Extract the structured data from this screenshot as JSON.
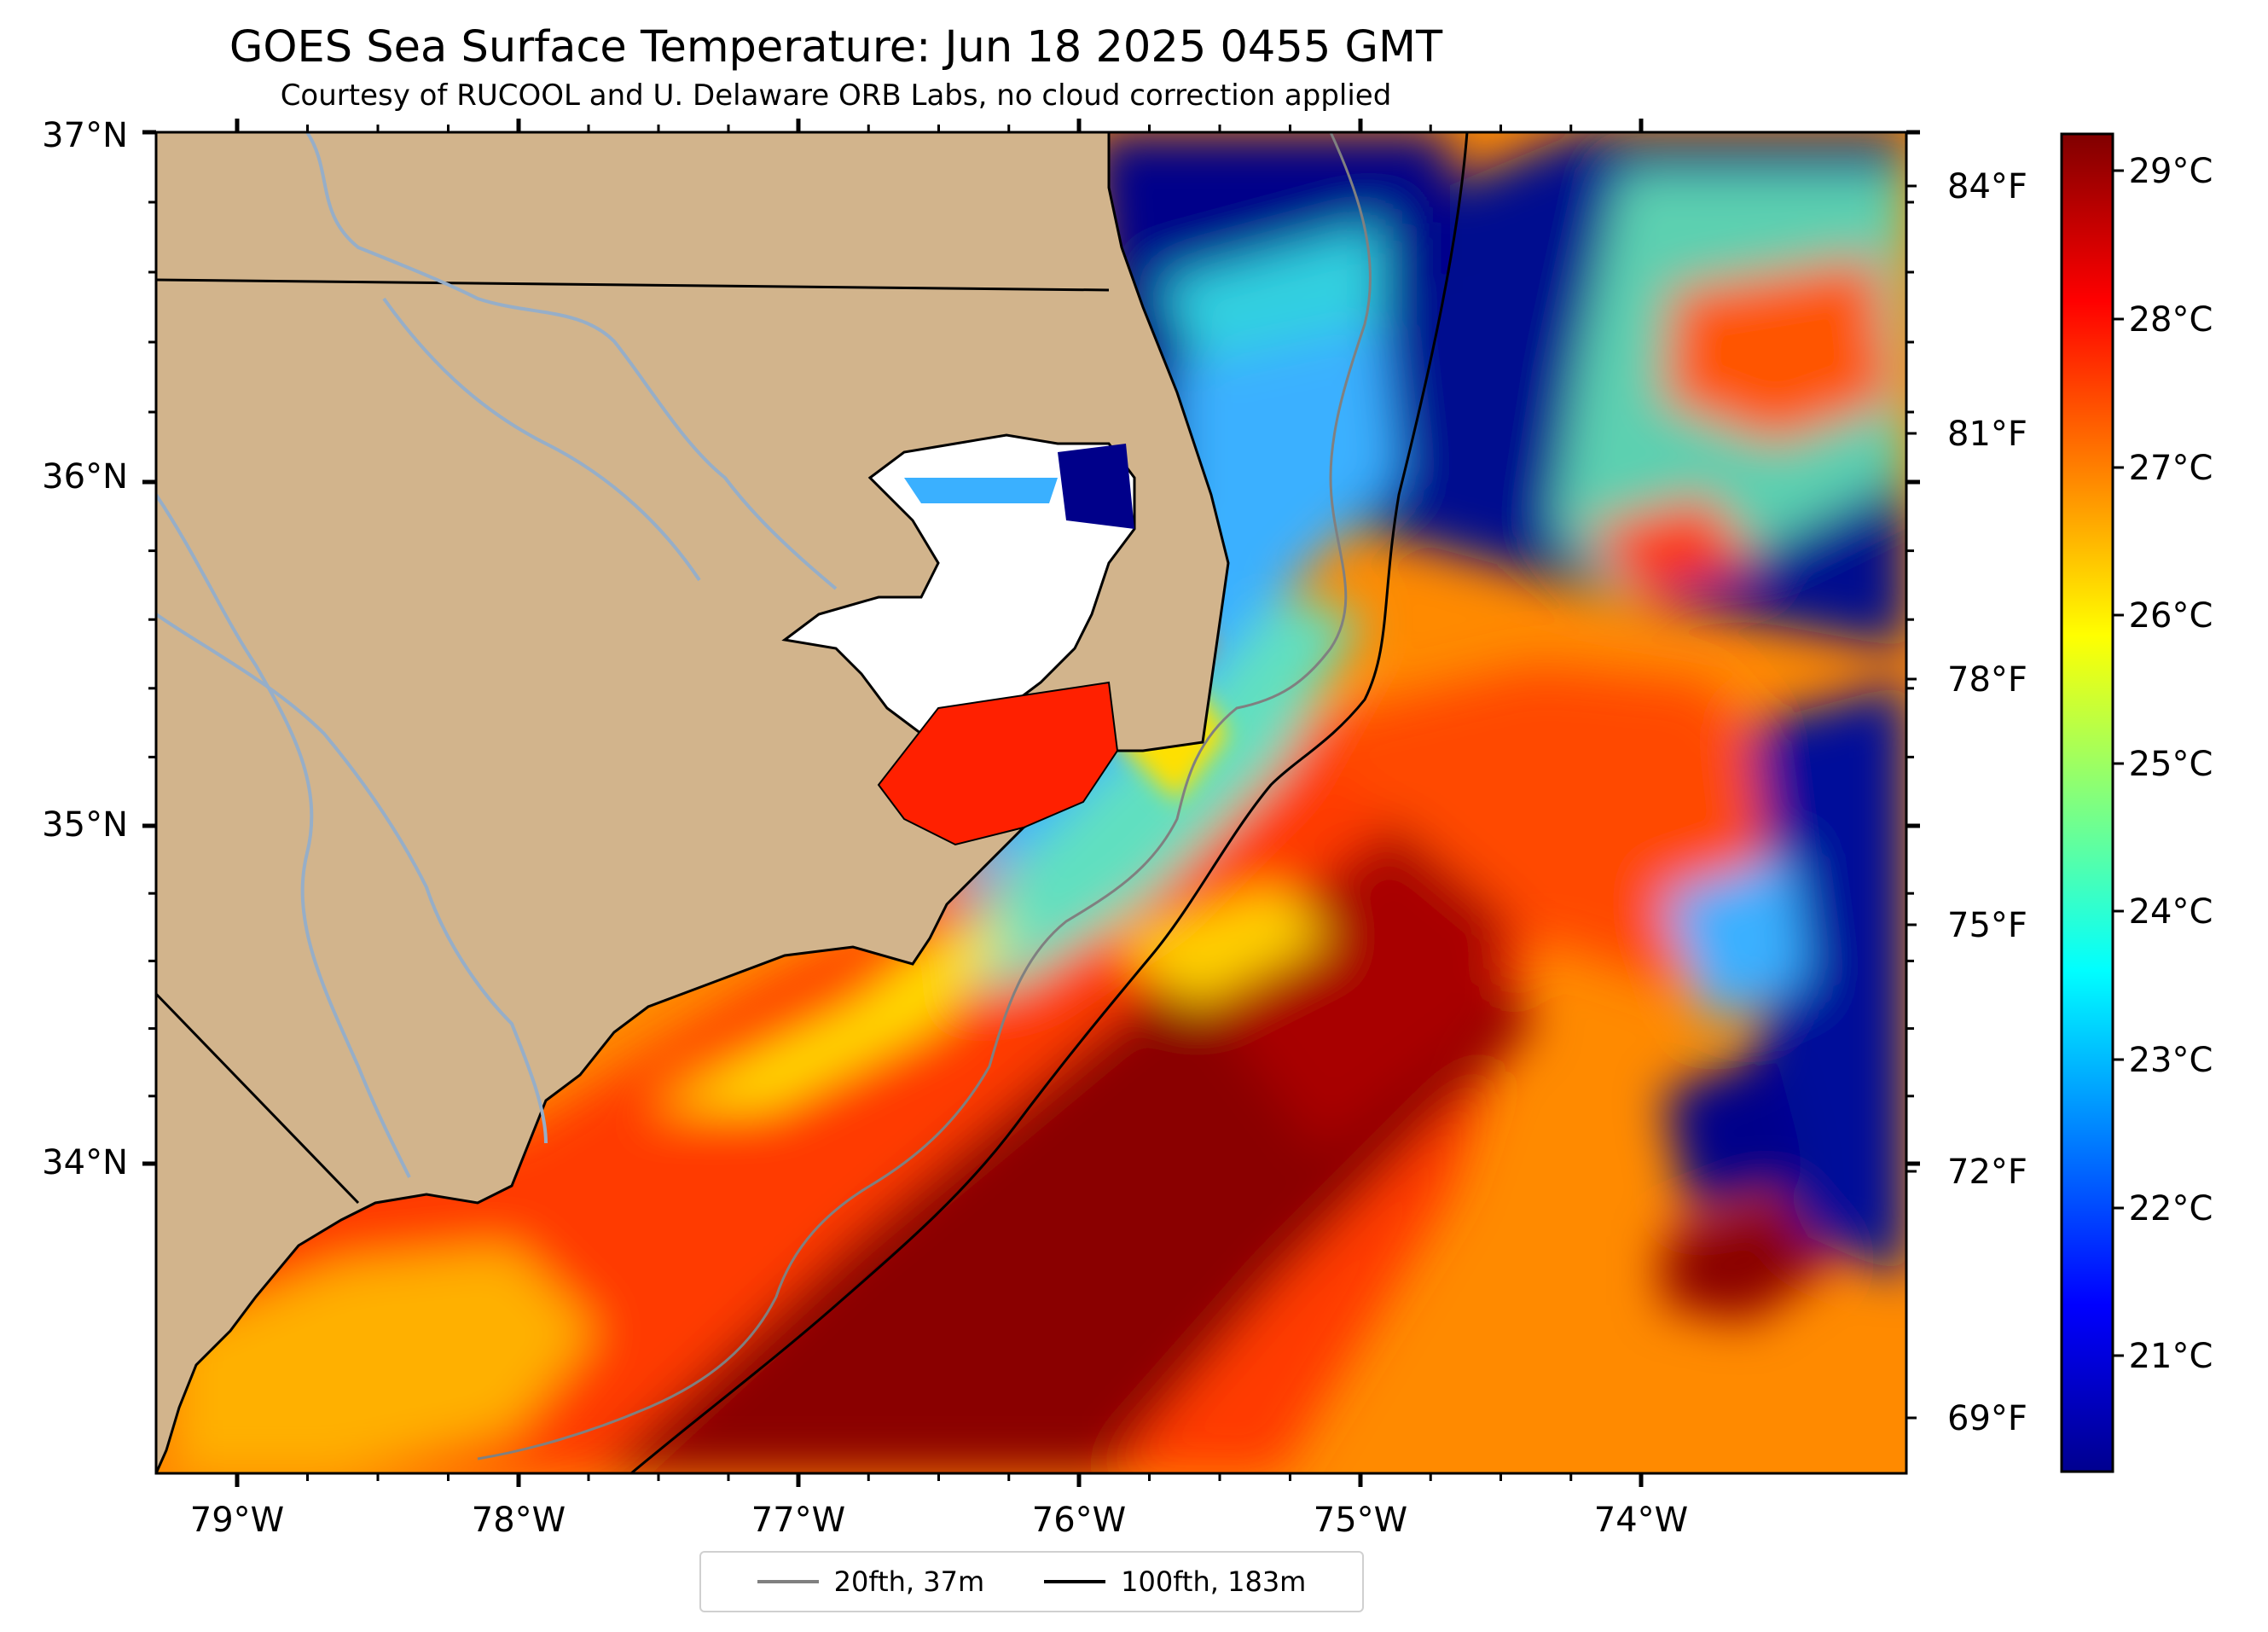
{
  "title": "GOES Sea Surface Temperature: Jun 18 2025 0455 GMT",
  "subtitle": "Courtesy of RUCOOL and U. Delaware ORB Labs, no cloud correction applied",
  "map": {
    "lon_range": [
      -79.3,
      -73.1
    ],
    "lat_range": [
      33.1,
      37.0
    ],
    "land_color": "#d2b48c",
    "river_color": "#96aec8",
    "lat_ticks": [
      "37°N",
      "36°N",
      "35°N",
      "34°N"
    ],
    "lon_ticks": [
      "79°W",
      "78°W",
      "77°W",
      "76°W",
      "75°W",
      "74°W"
    ],
    "right_ticks_f": [
      "84°F",
      "81°F",
      "78°F",
      "75°F",
      "72°F",
      "69°F"
    ]
  },
  "colorbar": {
    "colormap": "jet",
    "range_c": [
      20.3,
      29.3
    ],
    "labels_c": [
      "29°C",
      "28°C",
      "27°C",
      "26°C",
      "25°C",
      "24°C",
      "23°C",
      "22°C",
      "21°C"
    ]
  },
  "legend": [
    {
      "label": "20fth, 37m",
      "color": "#808080"
    },
    {
      "label": "100fth, 183m",
      "color": "#000000"
    }
  ]
}
